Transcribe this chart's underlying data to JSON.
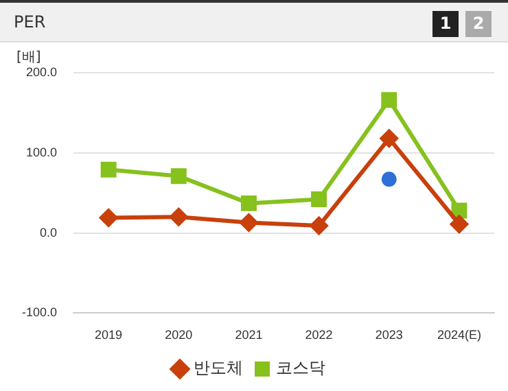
{
  "chart_data": {
    "type": "line",
    "title": "PER",
    "ylabel": "[배]",
    "categories": [
      "2019",
      "2020",
      "2021",
      "2022",
      "2023",
      "2024(E)"
    ],
    "series": [
      {
        "type": "scatter",
        "color": "#2e6fd8",
        "marker": "circle",
        "values": [
          null,
          null,
          null,
          null,
          67,
          null
        ]
      },
      {
        "name": "반도체",
        "color": "#c8400c",
        "marker": "diamond",
        "values": [
          19,
          20,
          13,
          9,
          118,
          11
        ]
      },
      {
        "name": "코스닥",
        "color": "#86c11d",
        "marker": "square",
        "values": [
          79,
          71,
          37,
          42,
          166,
          28
        ]
      }
    ],
    "ylim": [
      -100,
      200
    ],
    "yticks": [
      {
        "value": -100,
        "label": "-100.0"
      },
      {
        "value": 0,
        "label": "0.0"
      },
      {
        "value": 100,
        "label": "100.0"
      },
      {
        "value": 200,
        "label": "200.0"
      }
    ],
    "grid": "y",
    "legend": "bottom",
    "annotations": [
      "1",
      "2"
    ]
  }
}
